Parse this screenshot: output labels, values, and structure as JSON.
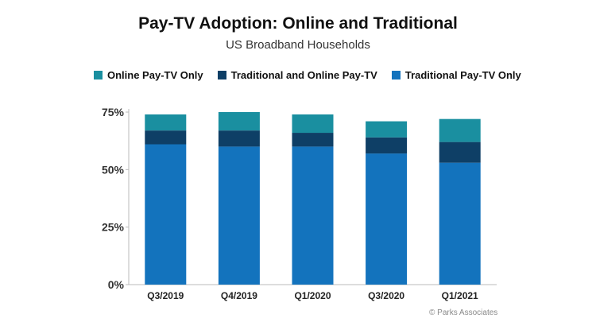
{
  "title": "Pay-TV Adoption: Online and Traditional",
  "subtitle": "US Broadband Households",
  "credit": "© Parks Associates",
  "colors": {
    "online_only": "#1a8fa0",
    "both": "#0e3f66",
    "traditional_only": "#1373bd",
    "axis": "#bbbbbb",
    "tick_text": "#333333"
  },
  "legend": [
    {
      "label": "Online Pay-TV Only",
      "color_key": "online_only"
    },
    {
      "label": "Traditional and Online Pay-TV",
      "color_key": "both"
    },
    {
      "label": "Traditional Pay-TV Only",
      "color_key": "traditional_only"
    }
  ],
  "chart_data": {
    "type": "bar",
    "stacked": true,
    "title": "Pay-TV Adoption: Online and Traditional",
    "subtitle": "US Broadband Households",
    "categories": [
      "Q3/2019",
      "Q4/2019",
      "Q1/2020",
      "Q3/2020",
      "Q1/2021"
    ],
    "series": [
      {
        "name": "Traditional Pay-TV Only",
        "color_key": "traditional_only",
        "values": [
          61,
          60,
          60,
          57,
          53
        ]
      },
      {
        "name": "Traditional and Online Pay-TV",
        "color_key": "both",
        "values": [
          6,
          7,
          6,
          7,
          9
        ]
      },
      {
        "name": "Online Pay-TV Only",
        "color_key": "online_only",
        "values": [
          7,
          8,
          8,
          7,
          10
        ]
      }
    ],
    "ylim": [
      0,
      75
    ],
    "yticks": [
      0,
      25,
      50,
      75
    ],
    "ytick_labels": [
      "0%",
      "25%",
      "50%",
      "75%"
    ],
    "xlabel": "",
    "ylabel": "",
    "grid": false,
    "legend_position": "top"
  }
}
